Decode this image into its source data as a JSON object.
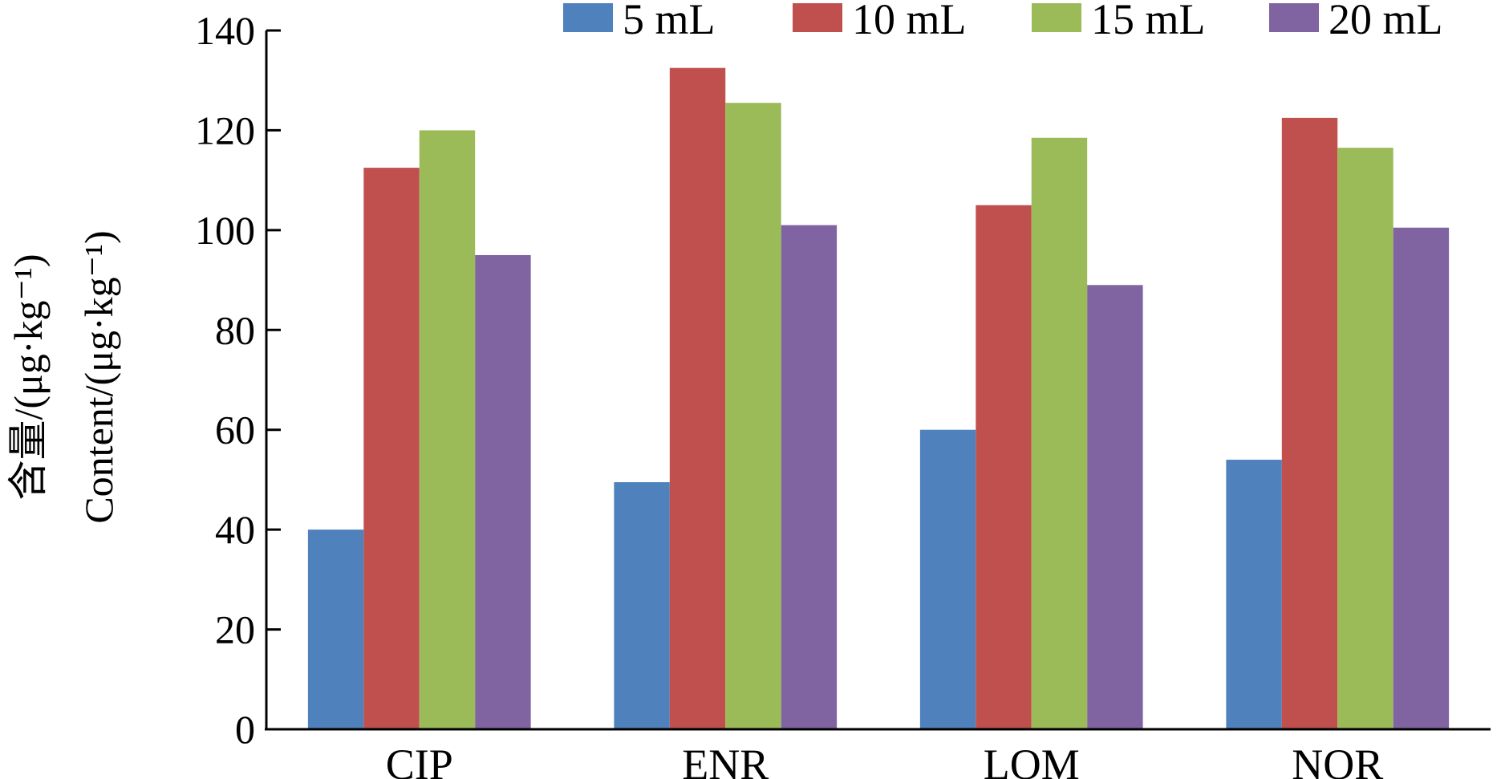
{
  "chart_data": {
    "type": "bar",
    "categories": [
      "CIP",
      "ENR",
      "LOM",
      "NOR"
    ],
    "series": [
      {
        "name": "5 mL",
        "color": "#4F81BD",
        "values": [
          40,
          49.5,
          60,
          54
        ]
      },
      {
        "name": "10 mL",
        "color": "#C0504D",
        "values": [
          112.5,
          132.5,
          105,
          122.5
        ]
      },
      {
        "name": "15 mL",
        "color": "#9BBB59",
        "values": [
          120,
          125.5,
          118.5,
          116.5
        ]
      },
      {
        "name": "20 mL",
        "color": "#8064A2",
        "values": [
          95,
          101,
          89,
          100.5
        ]
      }
    ],
    "ylabel_cn": "含量/(μg·kg⁻¹)",
    "ylabel_en": "Content/(μg·kg⁻¹)",
    "xlabel": "",
    "title": "",
    "ylim": [
      0,
      140
    ],
    "yticks": [
      0,
      20,
      40,
      60,
      80,
      100,
      120,
      140
    ],
    "grid": false,
    "legend_position": "top"
  }
}
